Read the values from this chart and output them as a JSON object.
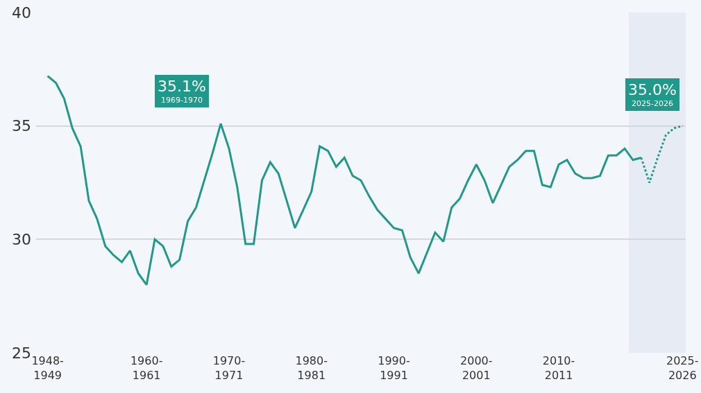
{
  "chart_data": {
    "type": "line",
    "categories": [
      "1948-\n1949",
      null,
      null,
      null,
      null,
      null,
      null,
      null,
      null,
      null,
      null,
      null,
      "1960-\n1961",
      null,
      null,
      null,
      null,
      null,
      null,
      null,
      null,
      null,
      "1970-\n1971",
      null,
      null,
      null,
      null,
      null,
      null,
      null,
      null,
      null,
      "1980-\n1981",
      null,
      null,
      null,
      null,
      null,
      null,
      null,
      null,
      null,
      "1990-\n1991",
      null,
      null,
      null,
      null,
      null,
      null,
      null,
      null,
      null,
      "2000-\n2001",
      null,
      null,
      null,
      null,
      null,
      null,
      null,
      null,
      null,
      "2010-\n2011",
      null,
      null,
      null,
      null,
      null,
      null,
      null,
      null,
      null,
      null,
      null,
      null,
      null,
      null,
      "2025-\n2026"
    ],
    "series": [
      {
        "color": "#1f9a8a",
        "line_style": "solid",
        "values": [
          37.2,
          36.9,
          36.2,
          34.9,
          34.1,
          31.7,
          30.9,
          29.7,
          29.3,
          29.0,
          29.5,
          28.5,
          28.0,
          30.0,
          29.7,
          28.8,
          29.1,
          30.8,
          31.4,
          32.6,
          33.8,
          35.1,
          34.0,
          32.3,
          29.8,
          29.8,
          32.6,
          33.4,
          32.9,
          31.7,
          30.5,
          31.3,
          32.1,
          34.1,
          33.9,
          33.2,
          33.6,
          32.8,
          32.6,
          31.9,
          31.3,
          30.9,
          30.5,
          30.4,
          29.2,
          28.5,
          29.4,
          30.3,
          29.9,
          31.4,
          31.8,
          32.6,
          33.3,
          32.6,
          31.6,
          32.4,
          33.2,
          33.5,
          33.9,
          33.9,
          32.4,
          32.3,
          33.3,
          33.5,
          32.9,
          32.7,
          32.7,
          32.8,
          33.7,
          33.7,
          34.0,
          33.5,
          33.6,
          null,
          null,
          null,
          null,
          null
        ]
      },
      {
        "color": "#1f9a8a",
        "line_style": "dotted",
        "values": [
          null,
          null,
          null,
          null,
          null,
          null,
          null,
          null,
          null,
          null,
          null,
          null,
          null,
          null,
          null,
          null,
          null,
          null,
          null,
          null,
          null,
          null,
          null,
          null,
          null,
          null,
          null,
          null,
          null,
          null,
          null,
          null,
          null,
          null,
          null,
          null,
          null,
          null,
          null,
          null,
          null,
          null,
          null,
          null,
          null,
          null,
          null,
          null,
          null,
          null,
          null,
          null,
          null,
          null,
          null,
          null,
          null,
          null,
          null,
          null,
          null,
          null,
          null,
          null,
          null,
          null,
          null,
          null,
          null,
          null,
          null,
          null,
          33.6,
          32.5,
          33.6,
          34.6,
          34.9,
          35.0
        ]
      }
    ],
    "ylim": [
      25,
      40
    ],
    "yticks": [
      25,
      30,
      35,
      40
    ],
    "grid": "y",
    "marker": "none",
    "annotations": [
      "35.1%\n1969-1970",
      "35.0%\n2025-2026"
    ]
  }
}
